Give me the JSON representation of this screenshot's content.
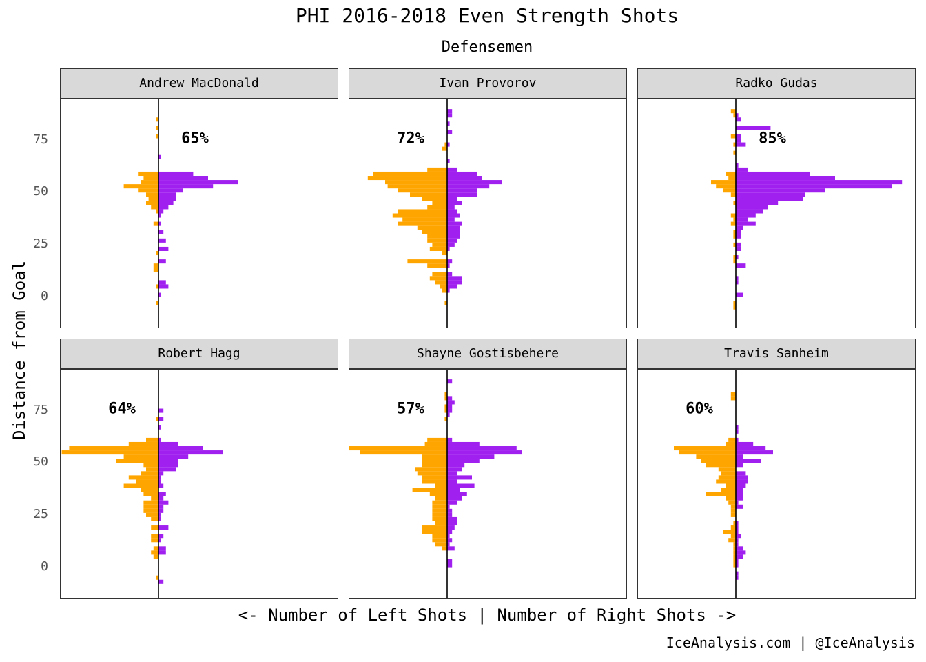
{
  "title": "PHI 2016-2018 Even Strength Shots",
  "subtitle": "Defensemen",
  "ylabel": "Distance from Goal",
  "xlabel": "<- Number of Left Shots | Number of Right Shots ->",
  "caption": "IceAnalysis.com | @IceAnalysis",
  "colors": {
    "left_shots": "#FFA500",
    "right_shots": "#A020F0",
    "strip": "#d9d9d9"
  },
  "chart_data": {
    "type": "bar",
    "orientation": "horizontal-back-to-back",
    "ylim": [
      -15,
      95
    ],
    "yticks": [
      "75",
      "50",
      "25",
      "0"
    ],
    "bin_width": 2,
    "panels": [
      {
        "name": "Andrew MacDonald",
        "pct": "65%",
        "bins": [
          {
            "d": 85,
            "l": 1,
            "r": 0
          },
          {
            "d": 81,
            "l": 1,
            "r": 0
          },
          {
            "d": 77,
            "l": 1,
            "r": 0
          },
          {
            "d": 67,
            "l": 0,
            "r": 1
          },
          {
            "d": 59,
            "l": 8,
            "r": 14
          },
          {
            "d": 57,
            "l": 6,
            "r": 20
          },
          {
            "d": 55,
            "l": 7,
            "r": 32
          },
          {
            "d": 53,
            "l": 14,
            "r": 22
          },
          {
            "d": 51,
            "l": 8,
            "r": 10
          },
          {
            "d": 49,
            "l": 5,
            "r": 7
          },
          {
            "d": 47,
            "l": 4,
            "r": 7
          },
          {
            "d": 45,
            "l": 5,
            "r": 6
          },
          {
            "d": 43,
            "l": 3,
            "r": 4
          },
          {
            "d": 41,
            "l": 1,
            "r": 2
          },
          {
            "d": 39,
            "l": 0,
            "r": 1
          },
          {
            "d": 35,
            "l": 2,
            "r": 1
          },
          {
            "d": 31,
            "l": 0,
            "r": 2
          },
          {
            "d": 27,
            "l": 0,
            "r": 3
          },
          {
            "d": 23,
            "l": 0,
            "r": 4
          },
          {
            "d": 21,
            "l": 1,
            "r": 0
          },
          {
            "d": 17,
            "l": 0,
            "r": 3
          },
          {
            "d": 15,
            "l": 2,
            "r": 0
          },
          {
            "d": 13,
            "l": 2,
            "r": 0
          },
          {
            "d": 7,
            "l": 0,
            "r": 3
          },
          {
            "d": 5,
            "l": 1,
            "r": 4
          },
          {
            "d": 1,
            "l": 0,
            "r": 1
          },
          {
            "d": -3,
            "l": 1,
            "r": 0
          }
        ]
      },
      {
        "name": "Ivan Provorov",
        "pct": "72%",
        "bins": [
          {
            "d": 89,
            "l": 0,
            "r": 2
          },
          {
            "d": 87,
            "l": 0,
            "r": 2
          },
          {
            "d": 83,
            "l": 0,
            "r": 1
          },
          {
            "d": 79,
            "l": 0,
            "r": 2
          },
          {
            "d": 73,
            "l": 1,
            "r": 1
          },
          {
            "d": 71,
            "l": 2,
            "r": 0
          },
          {
            "d": 65,
            "l": 0,
            "r": 1
          },
          {
            "d": 61,
            "l": 8,
            "r": 4
          },
          {
            "d": 59,
            "l": 30,
            "r": 12
          },
          {
            "d": 57,
            "l": 32,
            "r": 14
          },
          {
            "d": 55,
            "l": 25,
            "r": 22
          },
          {
            "d": 53,
            "l": 24,
            "r": 17
          },
          {
            "d": 51,
            "l": 20,
            "r": 12
          },
          {
            "d": 49,
            "l": 15,
            "r": 12
          },
          {
            "d": 47,
            "l": 10,
            "r": 4
          },
          {
            "d": 45,
            "l": 6,
            "r": 6
          },
          {
            "d": 43,
            "l": 8,
            "r": 3
          },
          {
            "d": 41,
            "l": 20,
            "r": 4
          },
          {
            "d": 39,
            "l": 22,
            "r": 5
          },
          {
            "d": 37,
            "l": 18,
            "r": 3
          },
          {
            "d": 35,
            "l": 20,
            "r": 6
          },
          {
            "d": 33,
            "l": 12,
            "r": 5
          },
          {
            "d": 31,
            "l": 10,
            "r": 5
          },
          {
            "d": 29,
            "l": 8,
            "r": 5
          },
          {
            "d": 27,
            "l": 8,
            "r": 4
          },
          {
            "d": 25,
            "l": 6,
            "r": 3
          },
          {
            "d": 23,
            "l": 7,
            "r": 1
          },
          {
            "d": 21,
            "l": 2,
            "r": 0
          },
          {
            "d": 17,
            "l": 16,
            "r": 2
          },
          {
            "d": 15,
            "l": 8,
            "r": 1
          },
          {
            "d": 11,
            "l": 6,
            "r": 2
          },
          {
            "d": 9,
            "l": 7,
            "r": 6
          },
          {
            "d": 7,
            "l": 5,
            "r": 6
          },
          {
            "d": 5,
            "l": 3,
            "r": 4
          },
          {
            "d": 3,
            "l": 2,
            "r": 1
          },
          {
            "d": -3,
            "l": 1,
            "r": 0
          }
        ]
      },
      {
        "name": "Radko Gudas",
        "pct": "85%",
        "bins": [
          {
            "d": 89,
            "l": 2,
            "r": 0
          },
          {
            "d": 87,
            "l": 1,
            "r": 1
          },
          {
            "d": 85,
            "l": 0,
            "r": 2
          },
          {
            "d": 81,
            "l": 0,
            "r": 14
          },
          {
            "d": 77,
            "l": 2,
            "r": 2
          },
          {
            "d": 75,
            "l": 0,
            "r": 2
          },
          {
            "d": 73,
            "l": 1,
            "r": 4
          },
          {
            "d": 69,
            "l": 1,
            "r": 0
          },
          {
            "d": 63,
            "l": 0,
            "r": 1
          },
          {
            "d": 61,
            "l": 0,
            "r": 5
          },
          {
            "d": 59,
            "l": 4,
            "r": 30
          },
          {
            "d": 57,
            "l": 3,
            "r": 40
          },
          {
            "d": 55,
            "l": 10,
            "r": 67
          },
          {
            "d": 53,
            "l": 8,
            "r": 63
          },
          {
            "d": 51,
            "l": 5,
            "r": 36
          },
          {
            "d": 49,
            "l": 2,
            "r": 28
          },
          {
            "d": 47,
            "l": 0,
            "r": 27
          },
          {
            "d": 45,
            "l": 1,
            "r": 17
          },
          {
            "d": 43,
            "l": 0,
            "r": 13
          },
          {
            "d": 41,
            "l": 0,
            "r": 11
          },
          {
            "d": 39,
            "l": 2,
            "r": 8
          },
          {
            "d": 37,
            "l": 1,
            "r": 5
          },
          {
            "d": 35,
            "l": 2,
            "r": 8
          },
          {
            "d": 33,
            "l": 0,
            "r": 3
          },
          {
            "d": 31,
            "l": 1,
            "r": 2
          },
          {
            "d": 29,
            "l": 1,
            "r": 2
          },
          {
            "d": 25,
            "l": 1,
            "r": 2
          },
          {
            "d": 23,
            "l": 0,
            "r": 2
          },
          {
            "d": 19,
            "l": 1,
            "r": 1
          },
          {
            "d": 17,
            "l": 1,
            "r": 0
          },
          {
            "d": 15,
            "l": 0,
            "r": 4
          },
          {
            "d": 9,
            "l": 0,
            "r": 1
          },
          {
            "d": 7,
            "l": 0,
            "r": 1
          },
          {
            "d": 1,
            "l": 0,
            "r": 3
          },
          {
            "d": -3,
            "l": 1,
            "r": 0
          },
          {
            "d": -5,
            "l": 1,
            "r": 0
          }
        ]
      },
      {
        "name": "Robert Hagg",
        "pct": "64%",
        "bins": [
          {
            "d": 75,
            "l": 0,
            "r": 2
          },
          {
            "d": 71,
            "l": 1,
            "r": 2
          },
          {
            "d": 67,
            "l": 0,
            "r": 1
          },
          {
            "d": 61,
            "l": 5,
            "r": 1
          },
          {
            "d": 59,
            "l": 12,
            "r": 8
          },
          {
            "d": 57,
            "l": 36,
            "r": 18
          },
          {
            "d": 55,
            "l": 39,
            "r": 26
          },
          {
            "d": 53,
            "l": 14,
            "r": 12
          },
          {
            "d": 51,
            "l": 17,
            "r": 8
          },
          {
            "d": 49,
            "l": 6,
            "r": 8
          },
          {
            "d": 47,
            "l": 5,
            "r": 7
          },
          {
            "d": 45,
            "l": 7,
            "r": 2
          },
          {
            "d": 43,
            "l": 12,
            "r": 1
          },
          {
            "d": 41,
            "l": 9,
            "r": 1
          },
          {
            "d": 39,
            "l": 14,
            "r": 2
          },
          {
            "d": 37,
            "l": 7,
            "r": 0
          },
          {
            "d": 35,
            "l": 6,
            "r": 3
          },
          {
            "d": 33,
            "l": 3,
            "r": 2
          },
          {
            "d": 31,
            "l": 6,
            "r": 4
          },
          {
            "d": 29,
            "l": 6,
            "r": 2
          },
          {
            "d": 27,
            "l": 6,
            "r": 2
          },
          {
            "d": 25,
            "l": 5,
            "r": 1
          },
          {
            "d": 23,
            "l": 3,
            "r": 1
          },
          {
            "d": 19,
            "l": 3,
            "r": 4
          },
          {
            "d": 15,
            "l": 3,
            "r": 2
          },
          {
            "d": 13,
            "l": 3,
            "r": 1
          },
          {
            "d": 9,
            "l": 2,
            "r": 3
          },
          {
            "d": 7,
            "l": 3,
            "r": 3
          },
          {
            "d": 5,
            "l": 2,
            "r": 0
          },
          {
            "d": -5,
            "l": 1,
            "r": 0
          },
          {
            "d": -7,
            "l": 0,
            "r": 2
          }
        ]
      },
      {
        "name": "Shayne Gostisbehere",
        "pct": "57%",
        "bins": [
          {
            "d": 89,
            "l": 0,
            "r": 2
          },
          {
            "d": 83,
            "l": 1,
            "r": 0
          },
          {
            "d": 81,
            "l": 1,
            "r": 2
          },
          {
            "d": 79,
            "l": 0,
            "r": 3
          },
          {
            "d": 77,
            "l": 1,
            "r": 2
          },
          {
            "d": 75,
            "l": 1,
            "r": 2
          },
          {
            "d": 73,
            "l": 0,
            "r": 1
          },
          {
            "d": 71,
            "l": 1,
            "r": 0
          },
          {
            "d": 61,
            "l": 8,
            "r": 2
          },
          {
            "d": 59,
            "l": 9,
            "r": 13
          },
          {
            "d": 57,
            "l": 41,
            "r": 28
          },
          {
            "d": 55,
            "l": 35,
            "r": 30
          },
          {
            "d": 53,
            "l": 10,
            "r": 19
          },
          {
            "d": 51,
            "l": 10,
            "r": 13
          },
          {
            "d": 49,
            "l": 10,
            "r": 7
          },
          {
            "d": 47,
            "l": 13,
            "r": 6
          },
          {
            "d": 45,
            "l": 12,
            "r": 4
          },
          {
            "d": 43,
            "l": 10,
            "r": 10
          },
          {
            "d": 41,
            "l": 10,
            "r": 4
          },
          {
            "d": 39,
            "l": 5,
            "r": 11
          },
          {
            "d": 37,
            "l": 14,
            "r": 5
          },
          {
            "d": 35,
            "l": 7,
            "r": 8
          },
          {
            "d": 33,
            "l": 5,
            "r": 6
          },
          {
            "d": 31,
            "l": 6,
            "r": 4
          },
          {
            "d": 29,
            "l": 6,
            "r": 1
          },
          {
            "d": 27,
            "l": 6,
            "r": 2
          },
          {
            "d": 25,
            "l": 6,
            "r": 2
          },
          {
            "d": 23,
            "l": 6,
            "r": 4
          },
          {
            "d": 21,
            "l": 5,
            "r": 4
          },
          {
            "d": 19,
            "l": 10,
            "r": 3
          },
          {
            "d": 17,
            "l": 10,
            "r": 2
          },
          {
            "d": 15,
            "l": 6,
            "r": 1
          },
          {
            "d": 13,
            "l": 6,
            "r": 2
          },
          {
            "d": 11,
            "l": 5,
            "r": 1
          },
          {
            "d": 9,
            "l": 2,
            "r": 3
          },
          {
            "d": 3,
            "l": 0,
            "r": 2
          },
          {
            "d": 1,
            "l": 0,
            "r": 2
          }
        ]
      },
      {
        "name": "Travis Sanheim",
        "pct": "60%",
        "bins": [
          {
            "d": 83,
            "l": 2,
            "r": 0
          },
          {
            "d": 81,
            "l": 2,
            "r": 0
          },
          {
            "d": 67,
            "l": 0,
            "r": 1
          },
          {
            "d": 65,
            "l": 0,
            "r": 1
          },
          {
            "d": 61,
            "l": 3,
            "r": 1
          },
          {
            "d": 59,
            "l": 4,
            "r": 7
          },
          {
            "d": 57,
            "l": 25,
            "r": 12
          },
          {
            "d": 55,
            "l": 23,
            "r": 15
          },
          {
            "d": 53,
            "l": 16,
            "r": 3
          },
          {
            "d": 51,
            "l": 14,
            "r": 10
          },
          {
            "d": 49,
            "l": 12,
            "r": 3
          },
          {
            "d": 47,
            "l": 7,
            "r": 0
          },
          {
            "d": 45,
            "l": 6,
            "r": 4
          },
          {
            "d": 43,
            "l": 7,
            "r": 5
          },
          {
            "d": 41,
            "l": 8,
            "r": 5
          },
          {
            "d": 39,
            "l": 4,
            "r": 4
          },
          {
            "d": 37,
            "l": 6,
            "r": 3
          },
          {
            "d": 35,
            "l": 12,
            "r": 3
          },
          {
            "d": 33,
            "l": 4,
            "r": 3
          },
          {
            "d": 31,
            "l": 3,
            "r": 1
          },
          {
            "d": 29,
            "l": 2,
            "r": 3
          },
          {
            "d": 27,
            "l": 2,
            "r": 0
          },
          {
            "d": 25,
            "l": 2,
            "r": 0
          },
          {
            "d": 21,
            "l": 1,
            "r": 1
          },
          {
            "d": 19,
            "l": 2,
            "r": 1
          },
          {
            "d": 17,
            "l": 5,
            "r": 1
          },
          {
            "d": 15,
            "l": 2,
            "r": 2
          },
          {
            "d": 13,
            "l": 3,
            "r": 1
          },
          {
            "d": 11,
            "l": 1,
            "r": 1
          },
          {
            "d": 9,
            "l": 1,
            "r": 3
          },
          {
            "d": 7,
            "l": 1,
            "r": 4
          },
          {
            "d": 5,
            "l": 1,
            "r": 3
          },
          {
            "d": 3,
            "l": 1,
            "r": 1
          },
          {
            "d": 1,
            "l": 1,
            "r": 1
          },
          {
            "d": -3,
            "l": 0,
            "r": 1
          },
          {
            "d": -5,
            "l": 0,
            "r": 1
          }
        ]
      }
    ]
  }
}
